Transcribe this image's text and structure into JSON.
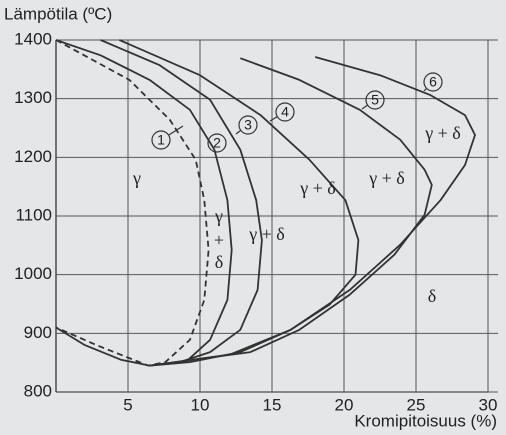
{
  "chart_data": {
    "type": "line",
    "title": "Lämpötila (ºC)",
    "x_label": "Kromipitoisuus (%)",
    "xlim": [
      0,
      30
    ],
    "xticks": [
      5,
      10,
      15,
      20,
      25,
      30
    ],
    "ylim": [
      800,
      1400
    ],
    "yticks": [
      800,
      900,
      1000,
      1100,
      1200,
      1300,
      1400
    ],
    "grid": true,
    "series": [
      {
        "name": "1",
        "color": "#333333",
        "dashed": true,
        "x": [
          0,
          5.1,
          7.9,
          9.7,
          10.3,
          10.6,
          10.3,
          9.3,
          7.6,
          6.4,
          3,
          0
        ],
        "values": [
          1400,
          1332,
          1264,
          1196,
          1127,
          1042,
          957,
          889,
          851,
          845,
          878,
          910
        ]
      },
      {
        "name": "2",
        "color": "#333333",
        "dashed": false,
        "x": [
          0,
          3.1,
          6.5,
          9.3,
          11.0,
          11.9,
          12.2,
          11.9,
          10.7,
          9.0,
          6.5,
          4.5,
          2,
          0
        ],
        "values": [
          1400,
          1374,
          1332,
          1281,
          1213,
          1127,
          1042,
          957,
          889,
          851,
          845,
          855,
          880,
          910
        ]
      },
      {
        "name": "3",
        "color": "#333333",
        "dashed": false,
        "x": [
          3.1,
          7.2,
          10.7,
          12.8,
          13.9,
          14.3,
          14.0,
          12.8,
          10.7,
          8.6,
          6.5
        ],
        "values": [
          1400,
          1357,
          1298,
          1213,
          1127,
          1059,
          974,
          906,
          868,
          851,
          845
        ]
      },
      {
        "name": "4",
        "color": "#333333",
        "dashed": false,
        "x": [
          4.4,
          10,
          14.2,
          17.6,
          20.1,
          21.0,
          20.8,
          19.0,
          16.3,
          12.8,
          9.3,
          6.5
        ],
        "values": [
          1400,
          1340,
          1272,
          1196,
          1127,
          1059,
          1000,
          949,
          906,
          868,
          851,
          845
        ]
      },
      {
        "name": "5",
        "color": "#333333",
        "dashed": false,
        "x": [
          12.8,
          16.9,
          21.1,
          23.9,
          25.6,
          26.1,
          25.6,
          23.5,
          20.4,
          16.9,
          13.5,
          6.5
        ],
        "values": [
          1369,
          1332,
          1281,
          1230,
          1179,
          1153,
          1102,
          1034,
          966,
          906,
          868,
          845
        ]
      },
      {
        "name": "6",
        "color": "#333333",
        "dashed": false,
        "x": [
          18.0,
          22.5,
          26.0,
          28.4,
          29.1,
          28.4,
          26.7,
          23.9,
          20.4,
          16.3,
          12.1,
          6.5
        ],
        "values": [
          1371,
          1340,
          1306,
          1272,
          1238,
          1187,
          1127,
          1051,
          974,
          906,
          864,
          845
        ]
      }
    ],
    "annotations": [
      "γ",
      [
        "γ",
        "+",
        "δ"
      ],
      "γ + δ",
      "γ + δ",
      "γ + δ",
      "γ + δ",
      "δ"
    ]
  }
}
